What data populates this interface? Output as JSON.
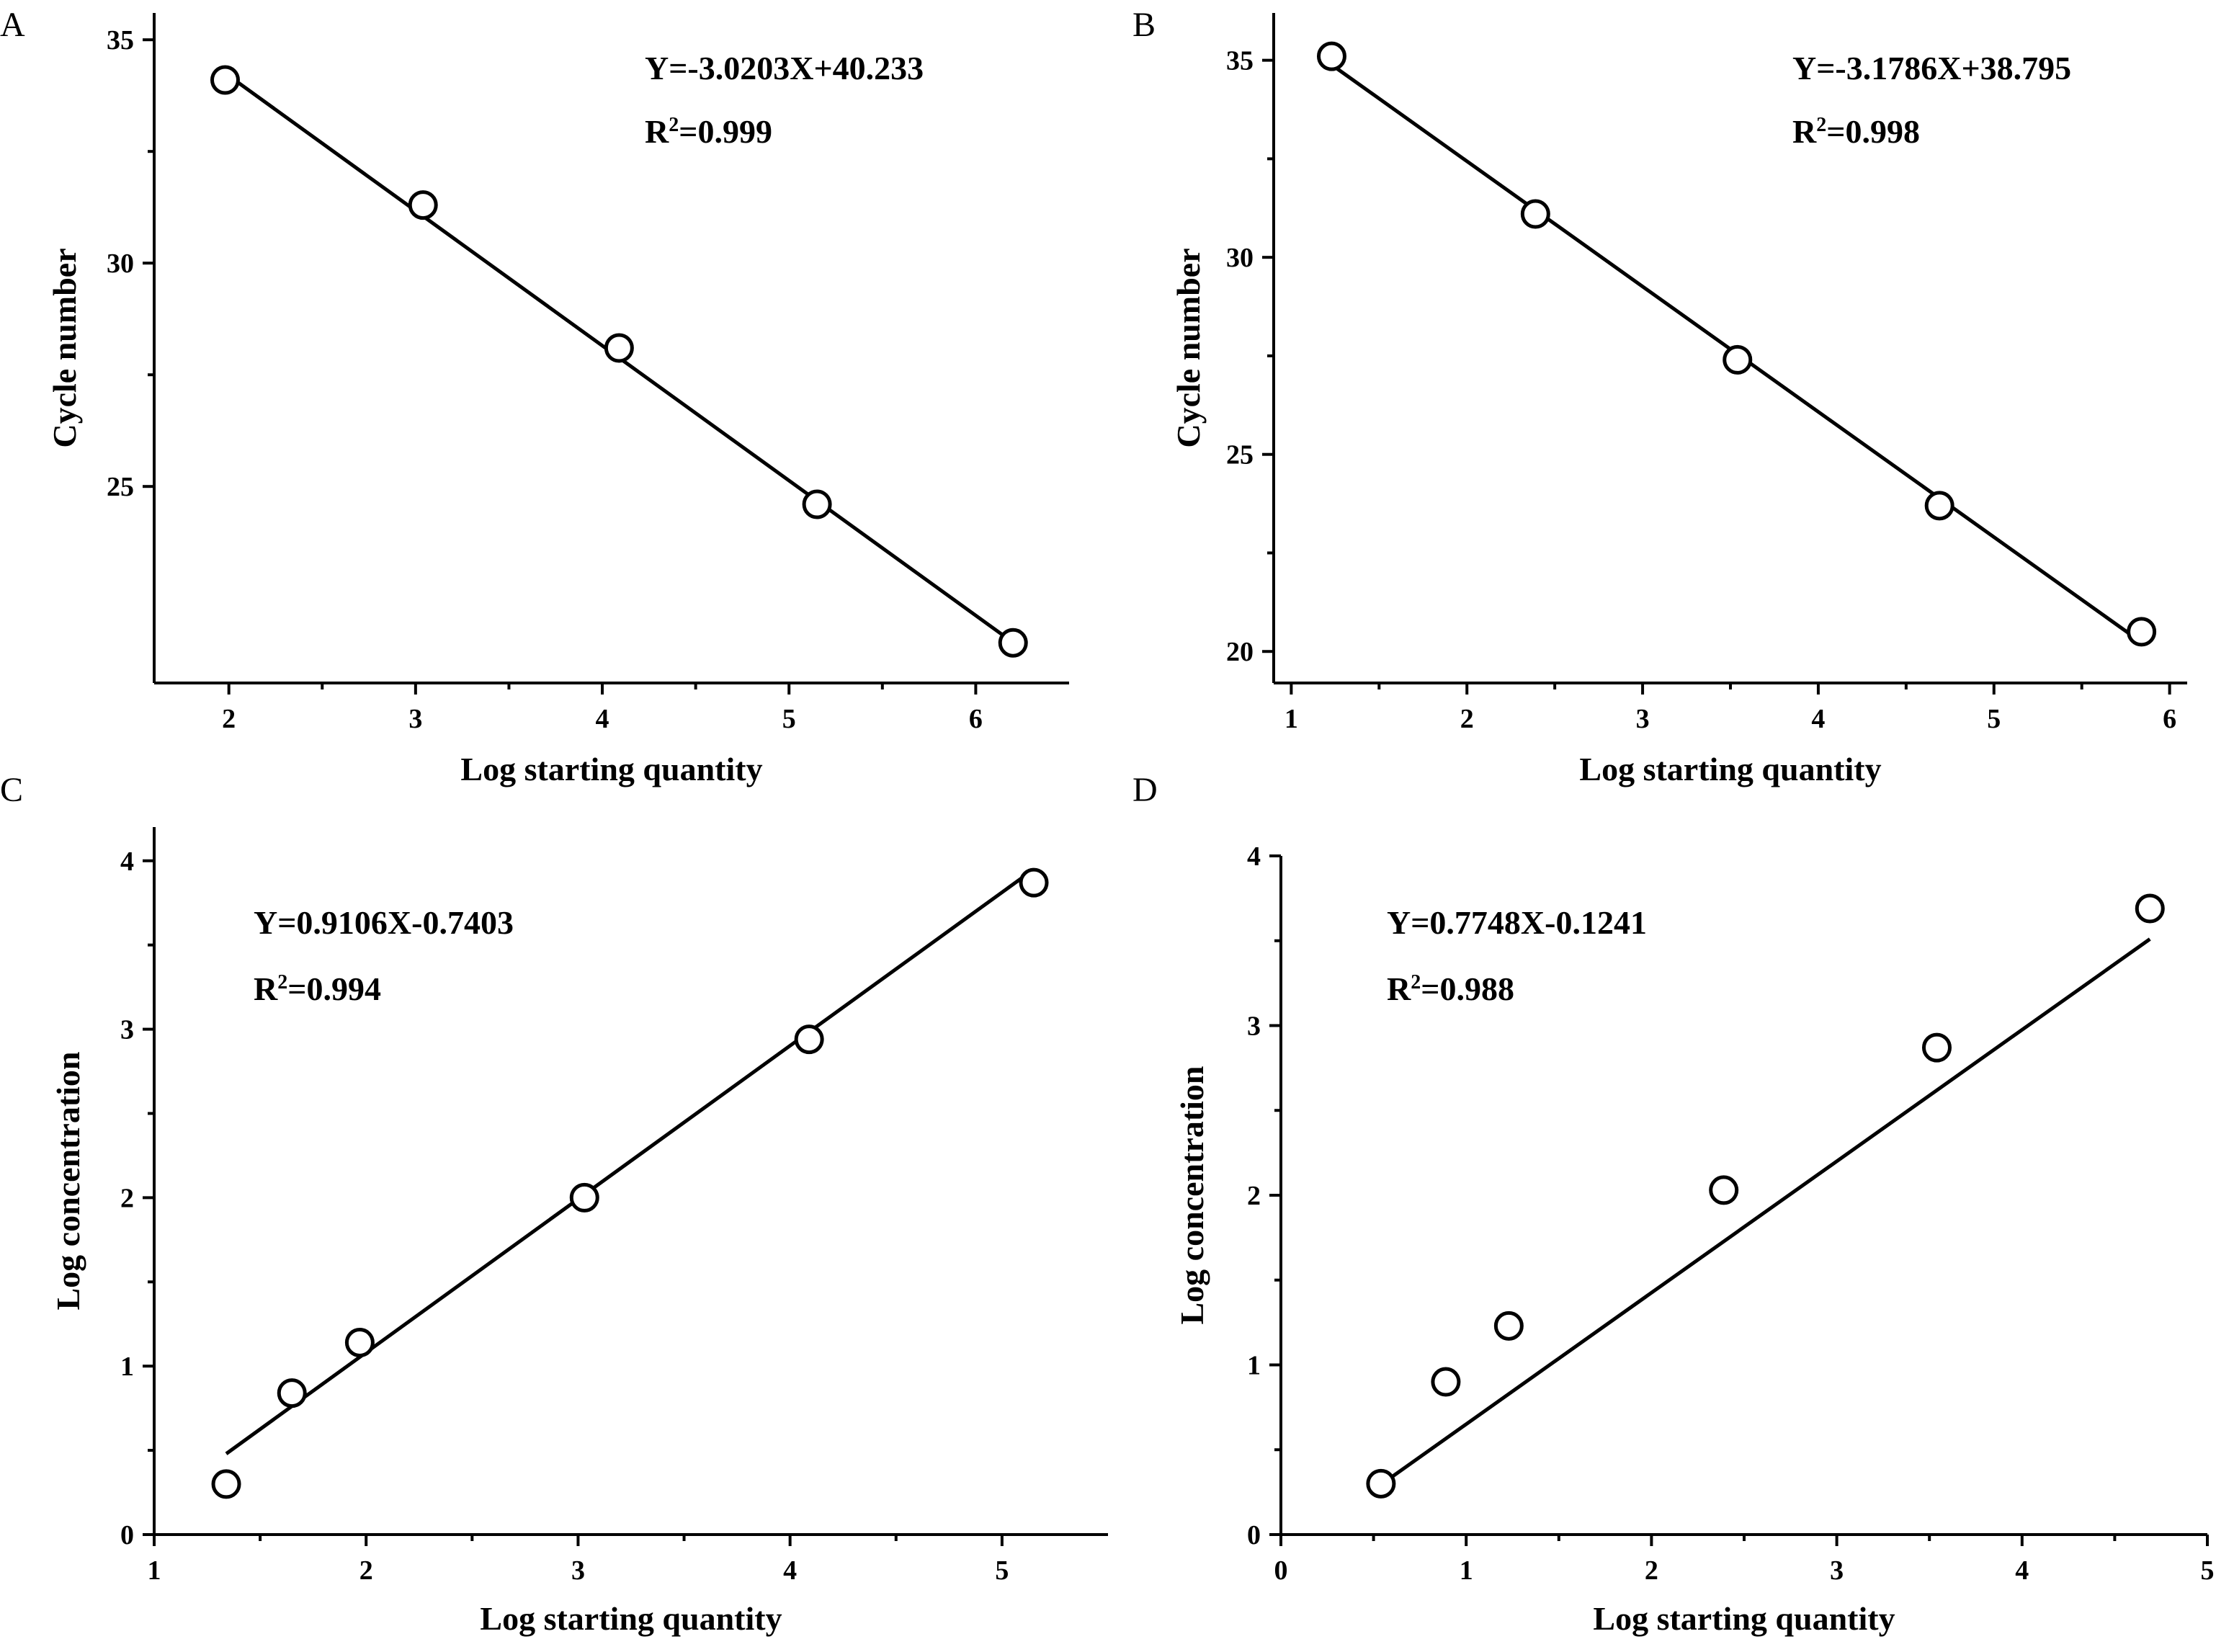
{
  "chart_data": [
    {
      "panel": "A",
      "type": "scatter",
      "xlabel": "Log starting quantity",
      "ylabel": "Cycle number",
      "xlim": [
        1.6,
        6.5
      ],
      "ylim": [
        20.6,
        35.6
      ],
      "xticks": [
        2,
        3,
        4,
        5,
        6
      ],
      "yticks": [
        25,
        30,
        35
      ],
      "points": [
        {
          "x": 1.98,
          "y": 34.1
        },
        {
          "x": 3.04,
          "y": 31.3
        },
        {
          "x": 4.09,
          "y": 28.1
        },
        {
          "x": 5.15,
          "y": 24.6
        },
        {
          "x": 6.2,
          "y": 21.5
        }
      ],
      "fit": {
        "slope": -3.0203,
        "intercept": 40.233,
        "x_range": [
          1.98,
          6.2
        ]
      },
      "equation": "Y=-3.0203X+40.233",
      "r2_label": "R",
      "r2_sup": "2",
      "r2_value": "=0.999"
    },
    {
      "panel": "B",
      "type": "scatter",
      "xlabel": "Log starting quantity",
      "ylabel": "Cycle number",
      "xlim": [
        0.9,
        6.1
      ],
      "ylim": [
        19.2,
        36.2
      ],
      "xticks": [
        1,
        2,
        3,
        4,
        5,
        6
      ],
      "yticks": [
        20,
        25,
        30,
        35
      ],
      "points": [
        {
          "x": 1.23,
          "y": 35.1
        },
        {
          "x": 2.39,
          "y": 31.1
        },
        {
          "x": 3.54,
          "y": 27.4
        },
        {
          "x": 4.69,
          "y": 23.7
        },
        {
          "x": 5.84,
          "y": 20.5
        }
      ],
      "fit": {
        "slope": -3.1786,
        "intercept": 38.795,
        "x_range": [
          1.23,
          5.84
        ]
      },
      "equation": "Y=-3.1786X+38.795",
      "r2_label": "R",
      "r2_sup": "2",
      "r2_value": "=0.998"
    },
    {
      "panel": "C",
      "type": "scatter",
      "xlabel": "Log starting quantity",
      "ylabel": "Log concentration",
      "xlim": [
        1,
        5.5
      ],
      "ylim": [
        0,
        4.2
      ],
      "xticks": [
        1,
        2,
        3,
        4,
        5
      ],
      "yticks": [
        0,
        1,
        2,
        3,
        4
      ],
      "points": [
        {
          "x": 1.34,
          "y": 0.3
        },
        {
          "x": 1.65,
          "y": 0.84
        },
        {
          "x": 1.97,
          "y": 1.14
        },
        {
          "x": 3.03,
          "y": 2.0
        },
        {
          "x": 4.09,
          "y": 2.94
        },
        {
          "x": 5.15,
          "y": 3.87
        }
      ],
      "fit": {
        "slope": 0.9106,
        "intercept": -0.7403,
        "x_range": [
          1.34,
          5.15
        ]
      },
      "equation": "Y=0.9106X-0.7403",
      "r2_label": "R",
      "r2_sup": "2",
      "r2_value": "=0.994"
    },
    {
      "panel": "D",
      "type": "scatter",
      "xlabel": "Log starting quantity",
      "ylabel": "Log concentration",
      "xlim": [
        0,
        5
      ],
      "ylim": [
        0,
        4
      ],
      "xticks": [
        0,
        1,
        2,
        3,
        4,
        5
      ],
      "yticks": [
        0,
        1,
        2,
        3,
        4
      ],
      "points": [
        {
          "x": 0.54,
          "y": 0.3
        },
        {
          "x": 0.89,
          "y": 0.9
        },
        {
          "x": 1.23,
          "y": 1.23
        },
        {
          "x": 2.39,
          "y": 2.03
        },
        {
          "x": 3.54,
          "y": 2.87
        },
        {
          "x": 4.69,
          "y": 3.69
        }
      ],
      "fit": {
        "slope": 0.7748,
        "intercept": -0.1241,
        "x_range": [
          0.54,
          4.69
        ]
      },
      "equation": "Y=0.7748X-0.1241",
      "r2_label": "R",
      "r2_sup": "2",
      "r2_value": "=0.988"
    }
  ]
}
